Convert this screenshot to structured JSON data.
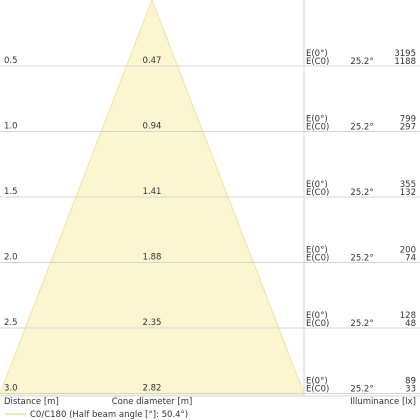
{
  "chart_data": {
    "type": "table",
    "xlabel": "Distance [m]",
    "center_label": "Cone diameter [m]",
    "ylabel": "Illuminance [lx]",
    "legend": "C0/C180 (Half beam angle [°]: 50.4°)",
    "half_angle_label": "25.2°",
    "e_labels": [
      "E(0°)",
      "E(C0)"
    ],
    "rows": [
      {
        "distance": "0.5",
        "diameter": "0.47",
        "e0": "3195",
        "ec0": "1188"
      },
      {
        "distance": "1.0",
        "diameter": "0.94",
        "e0": "799",
        "ec0": "297"
      },
      {
        "distance": "1.5",
        "diameter": "1.41",
        "e0": "355",
        "ec0": "132"
      },
      {
        "distance": "2.0",
        "diameter": "1.88",
        "e0": "200",
        "ec0": "74"
      },
      {
        "distance": "2.5",
        "diameter": "2.35",
        "e0": "128",
        "ec0": "48"
      },
      {
        "distance": "3.0",
        "diameter": "2.82",
        "e0": "89",
        "ec0": "33"
      }
    ],
    "colors": {
      "cone_fill": "#fbf6cf",
      "cone_edge": "#ece3a6",
      "grid": "#d4d4d4",
      "text": "#333333",
      "legend_line": "#f2dca6"
    }
  }
}
